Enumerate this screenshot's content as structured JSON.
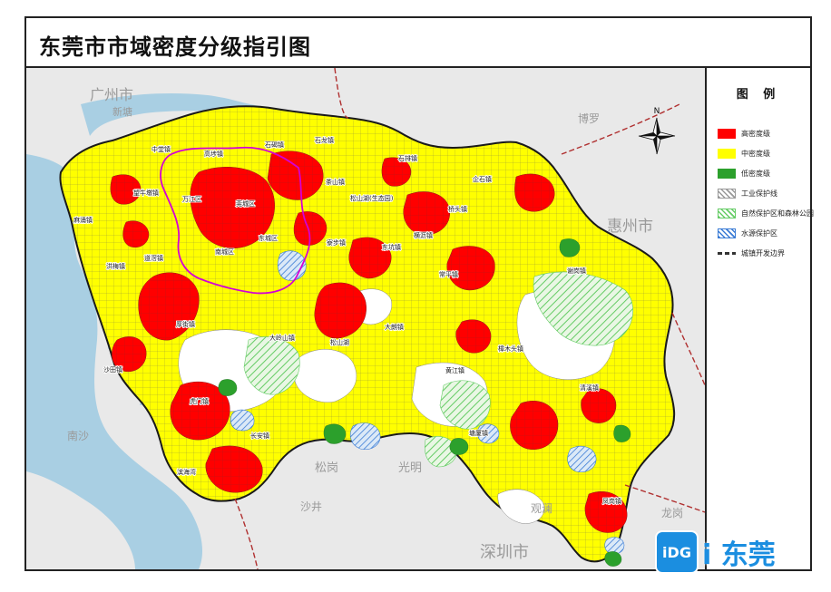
{
  "title": "东莞市市域密度分级指引图",
  "legend": {
    "title": "图 例",
    "items": [
      {
        "label": "高密度级",
        "type": "fill",
        "color": "#ff0000"
      },
      {
        "label": "中密度级",
        "type": "fill",
        "color": "#ffff00"
      },
      {
        "label": "低密度级",
        "type": "fill",
        "color": "#2ca02c"
      },
      {
        "label": "工业保护线",
        "type": "hatch",
        "color": "#999999"
      },
      {
        "label": "自然保护区和森林公园",
        "type": "hatch",
        "color": "#66cc66"
      },
      {
        "label": "水源保护区",
        "type": "hatch",
        "color": "#3a7bd5"
      },
      {
        "label": "城镇开发边界",
        "type": "dash",
        "color": "#333333"
      }
    ]
  },
  "compass": {
    "north": "N"
  },
  "map": {
    "colors": {
      "background": "#e9e9e9",
      "water": "#a9cfe3",
      "white_land": "#ffffff",
      "high": "#ff0000",
      "mid": "#ffff00",
      "low": "#2ca02c",
      "outline": "#1a1a1a",
      "district_line": "#d400d4",
      "border_dash": "#b03030"
    },
    "region_labels": [
      {
        "text": "广州市"
      },
      {
        "text": "新塘"
      },
      {
        "text": "博罗"
      },
      {
        "text": "惠州市"
      },
      {
        "text": "南沙"
      },
      {
        "text": "松岗"
      },
      {
        "text": "光明"
      },
      {
        "text": "沙井"
      },
      {
        "text": "观澜"
      },
      {
        "text": "深圳市"
      },
      {
        "text": "龙岗"
      }
    ],
    "town_labels": [
      "中堂镇",
      "高埗镇",
      "石碣镇",
      "石龙镇",
      "石排镇",
      "麻涌镇",
      "望牛墩镇",
      "万江区",
      "莞城区",
      "茶山镇",
      "松山湖(生态园)",
      "企石镇",
      "洪梅镇",
      "道滘镇",
      "南城区",
      "东城区",
      "寮步镇",
      "东坑镇",
      "桥头镇",
      "横沥镇",
      "常平镇",
      "谢岗镇",
      "沙田镇",
      "厚街镇",
      "大岭山镇",
      "松山湖",
      "大朗镇",
      "黄江镇",
      "樟木头镇",
      "虎门镇",
      "长安镇",
      "清溪镇",
      "塘厦镇",
      "滨海湾",
      "凤岗镇"
    ]
  },
  "logo": {
    "mark": "iDG",
    "text": "i 东莞"
  }
}
